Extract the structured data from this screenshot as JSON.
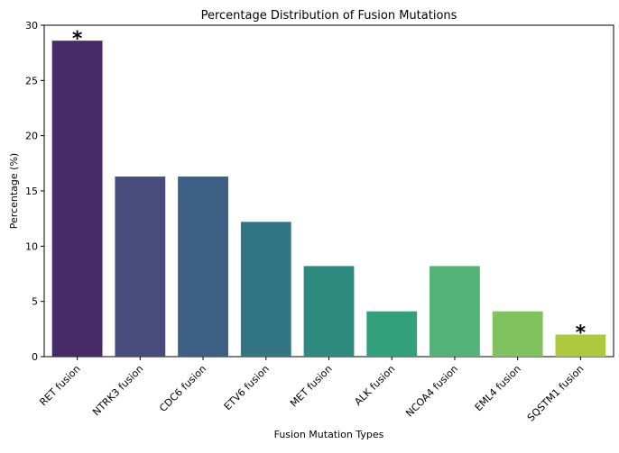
{
  "chart_data": {
    "type": "bar",
    "title": "Percentage Distribution of Fusion Mutations",
    "xlabel": "Fusion Mutation Types",
    "ylabel": "Percentage (%)",
    "categories": [
      "RET fusion",
      "NTRK3 fusion",
      "CDC6 fusion",
      "ETV6 fusion",
      "MET fusion",
      "ALK fusion",
      "NCOA4 fusion",
      "EML4 fusion",
      "SQSTM1 fusion"
    ],
    "values": [
      28.6,
      16.3,
      16.3,
      12.2,
      8.2,
      4.1,
      8.2,
      4.1,
      2.0
    ],
    "colors": [
      "#482a68",
      "#4a4b7d",
      "#3d5f83",
      "#327583",
      "#2e897f",
      "#32a07b",
      "#53b376",
      "#7fc25e",
      "#aec93d"
    ],
    "annotations": [
      {
        "category": "RET fusion",
        "text": "*"
      },
      {
        "category": "SQSTM1 fusion",
        "text": "*"
      }
    ],
    "ylim": [
      0,
      30
    ],
    "yticks": [
      "0",
      "5",
      "10",
      "15",
      "20",
      "25",
      "30"
    ],
    "grid": false,
    "legend": "none"
  }
}
